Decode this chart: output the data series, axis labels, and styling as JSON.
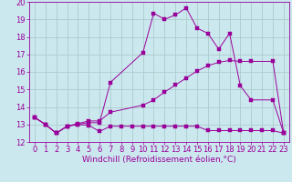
{
  "background_color": "#cce8ef",
  "line_color": "#990099",
  "grid_color": "#aacccc",
  "xlabel": "Windchill (Refroidissement éolien,°C)",
  "xlabel_fontsize": 6.5,
  "tick_fontsize": 6,
  "xlim": [
    -0.5,
    23.5
  ],
  "ylim": [
    12,
    20
  ],
  "yticks": [
    12,
    13,
    14,
    15,
    16,
    17,
    18,
    19,
    20
  ],
  "xticks": [
    0,
    1,
    2,
    3,
    4,
    5,
    6,
    7,
    8,
    9,
    10,
    11,
    12,
    13,
    14,
    15,
    16,
    17,
    18,
    19,
    20,
    21,
    22,
    23
  ],
  "line1_x": [
    0,
    1,
    2,
    3,
    4,
    5,
    6,
    7,
    8,
    9,
    10,
    11,
    12,
    13,
    14,
    15,
    16,
    17,
    18,
    19,
    20,
    21,
    22,
    23
  ],
  "line1_y": [
    13.4,
    13.0,
    12.5,
    12.9,
    13.0,
    12.95,
    12.6,
    12.9,
    12.9,
    12.9,
    12.9,
    12.9,
    12.9,
    12.9,
    12.9,
    12.9,
    12.65,
    12.65,
    12.65,
    12.65,
    12.65,
    12.65,
    12.65,
    12.5
  ],
  "line2_x": [
    0,
    1,
    2,
    3,
    4,
    5,
    6,
    7,
    10,
    11,
    12,
    13,
    14,
    15,
    16,
    17,
    18,
    19,
    20,
    22,
    23
  ],
  "line2_y": [
    13.4,
    13.0,
    12.5,
    12.9,
    13.0,
    13.1,
    13.1,
    15.4,
    17.1,
    19.35,
    19.0,
    19.25,
    19.65,
    18.5,
    18.2,
    17.3,
    18.2,
    15.2,
    14.4,
    14.4,
    12.5
  ],
  "line3_x": [
    0,
    1,
    2,
    3,
    4,
    5,
    6,
    7,
    10,
    11,
    12,
    13,
    14,
    15,
    16,
    17,
    18,
    19,
    20,
    22,
    23
  ],
  "line3_y": [
    13.4,
    13.0,
    12.5,
    12.9,
    13.05,
    13.2,
    13.2,
    13.7,
    14.1,
    14.4,
    14.85,
    15.25,
    15.65,
    16.05,
    16.35,
    16.55,
    16.65,
    16.6,
    16.6,
    16.6,
    12.5
  ]
}
